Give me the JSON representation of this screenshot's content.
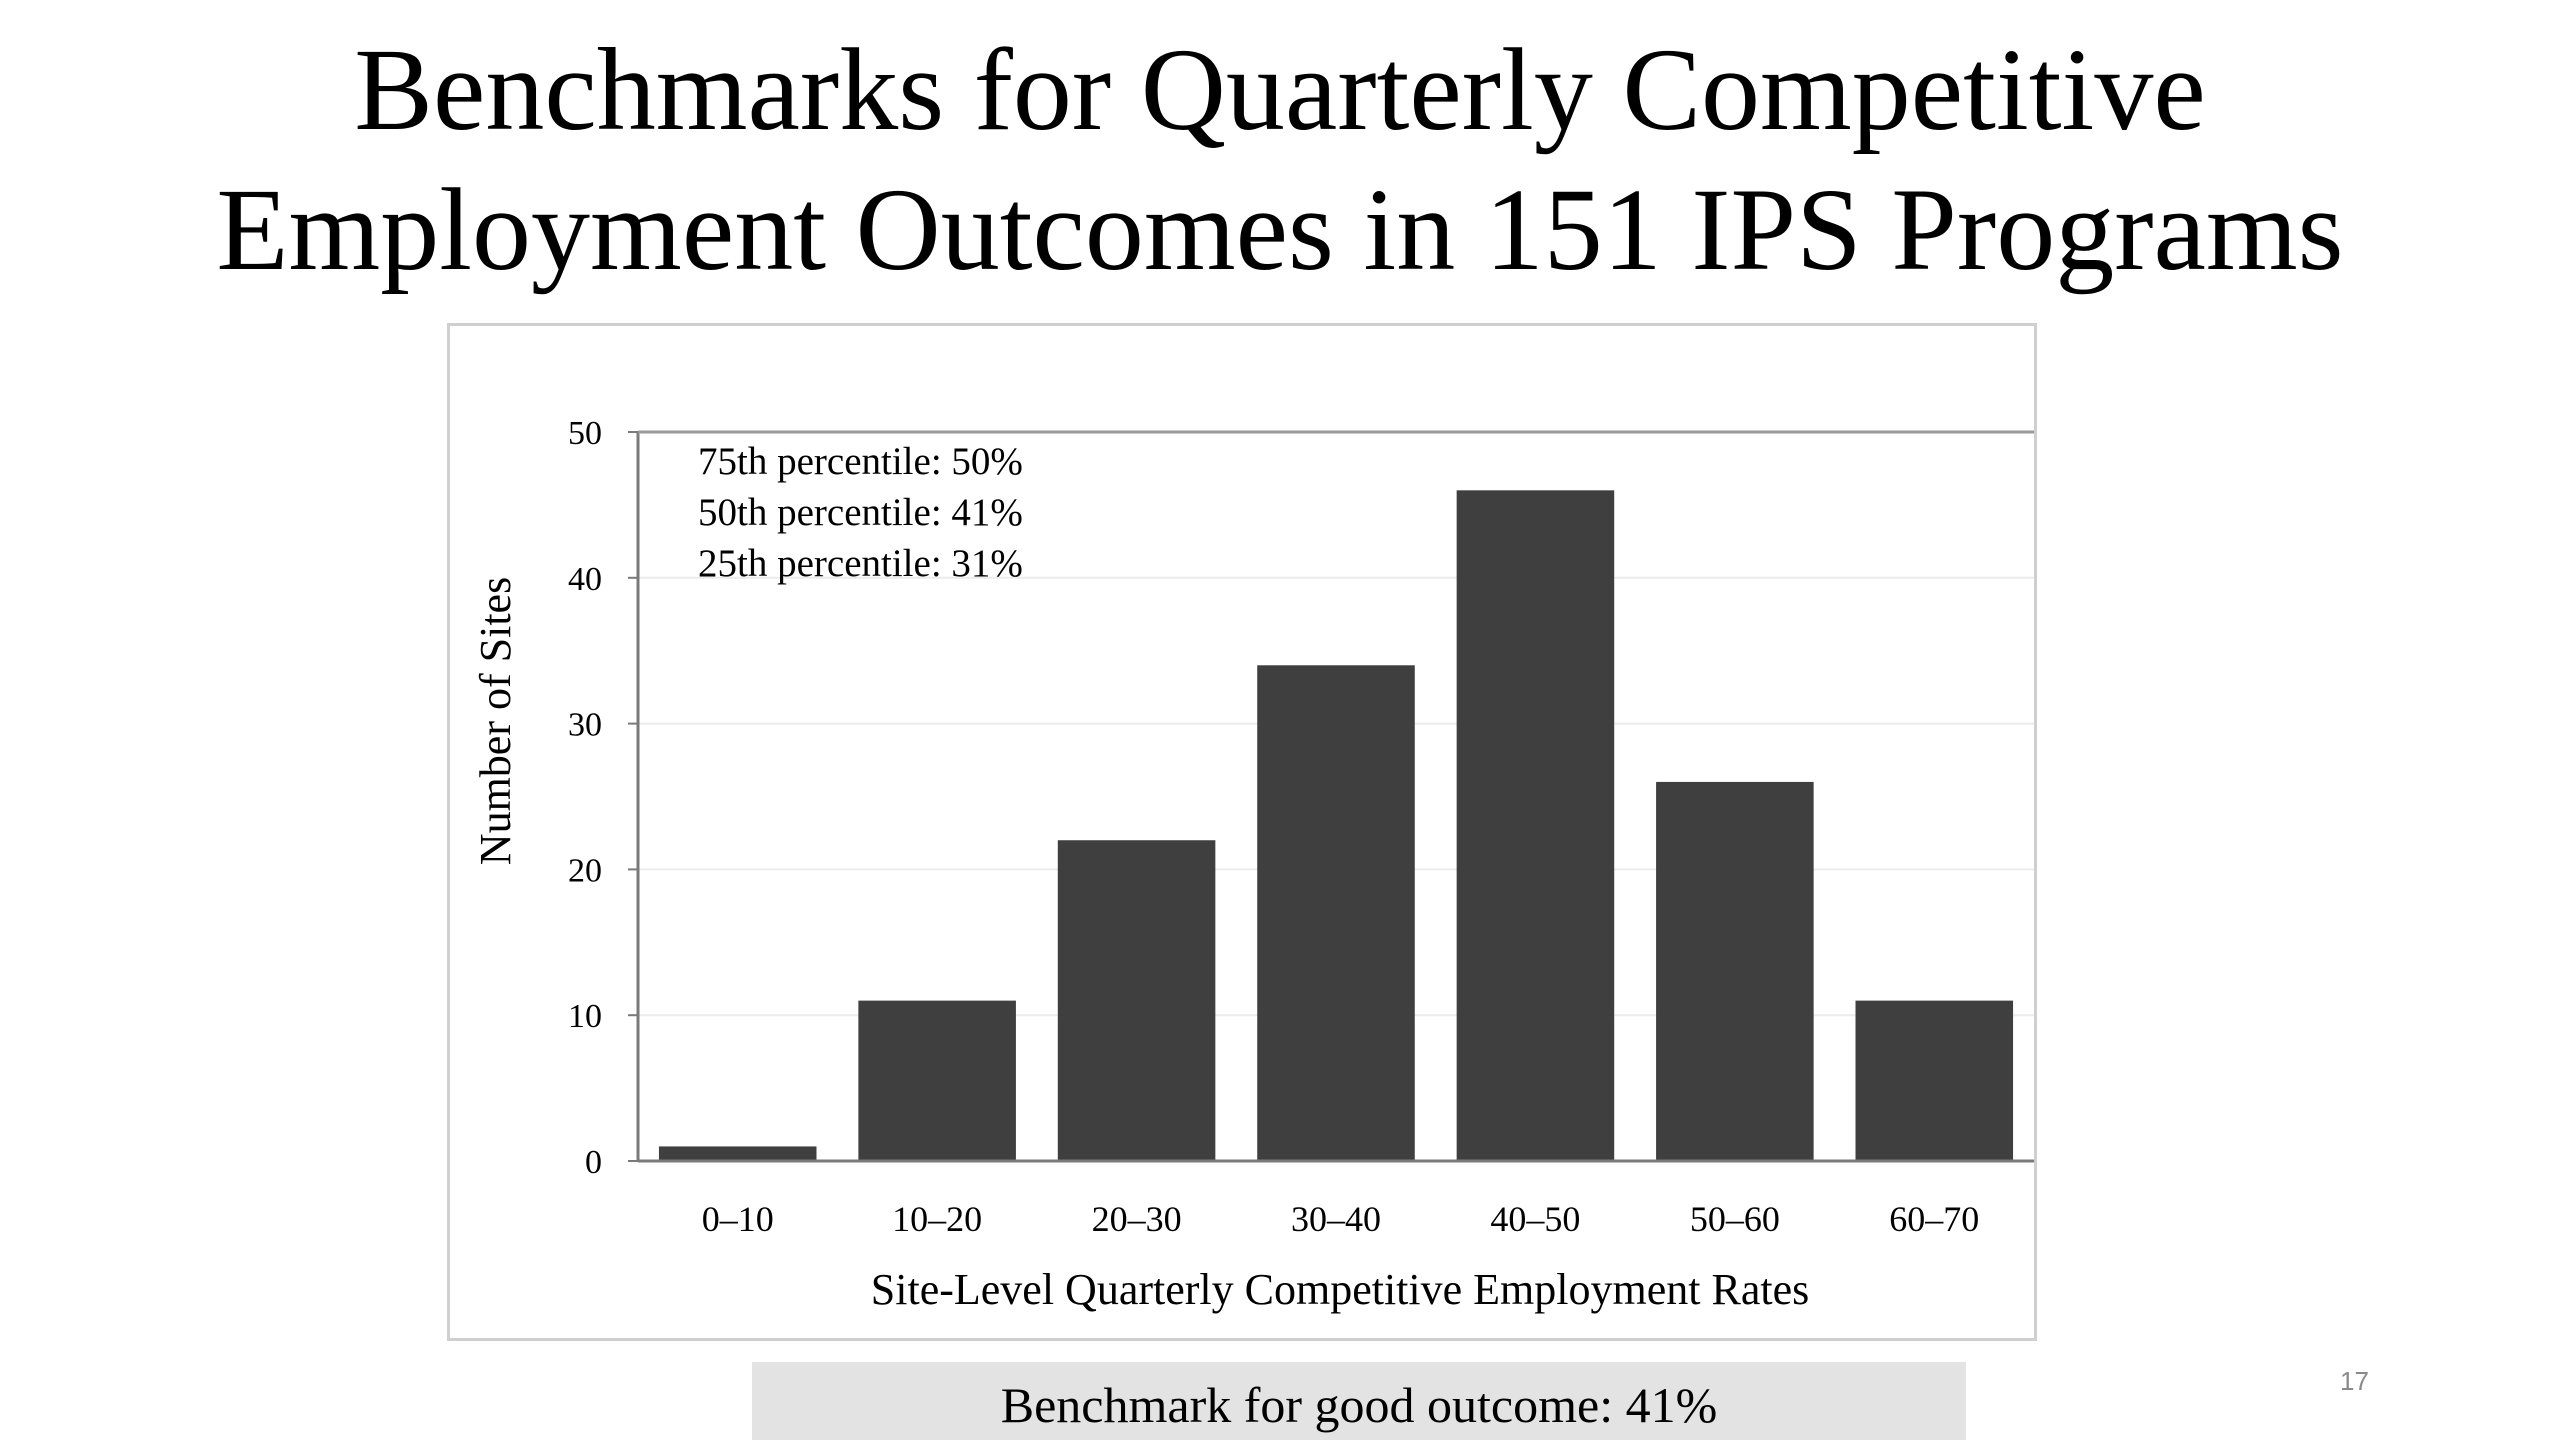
{
  "slide": {
    "title_line1": "Benchmarks for Quarterly Competitive",
    "title_line2": "Employment Outcomes in 151 IPS Programs",
    "benchmark_text": "Benchmark for good outcome:  41%",
    "page_number": "17"
  },
  "chart_data": {
    "type": "bar",
    "categories": [
      "0–10",
      "10–20",
      "20–30",
      "30–40",
      "40–50",
      "50–60",
      "60–70"
    ],
    "values": [
      1,
      11,
      22,
      34,
      46,
      26,
      11
    ],
    "xlabel": "Site-Level Quarterly Competitive Employment Rates",
    "ylabel": "Number of Sites",
    "ylim": [
      0,
      50
    ],
    "yticks": [
      0,
      10,
      20,
      30,
      40,
      50
    ],
    "grid": true,
    "bar_color": "#3f3f3f",
    "annotations": [
      "75th percentile:  50%",
      "50th percentile:  41%",
      "25th percentile:  31%"
    ]
  }
}
